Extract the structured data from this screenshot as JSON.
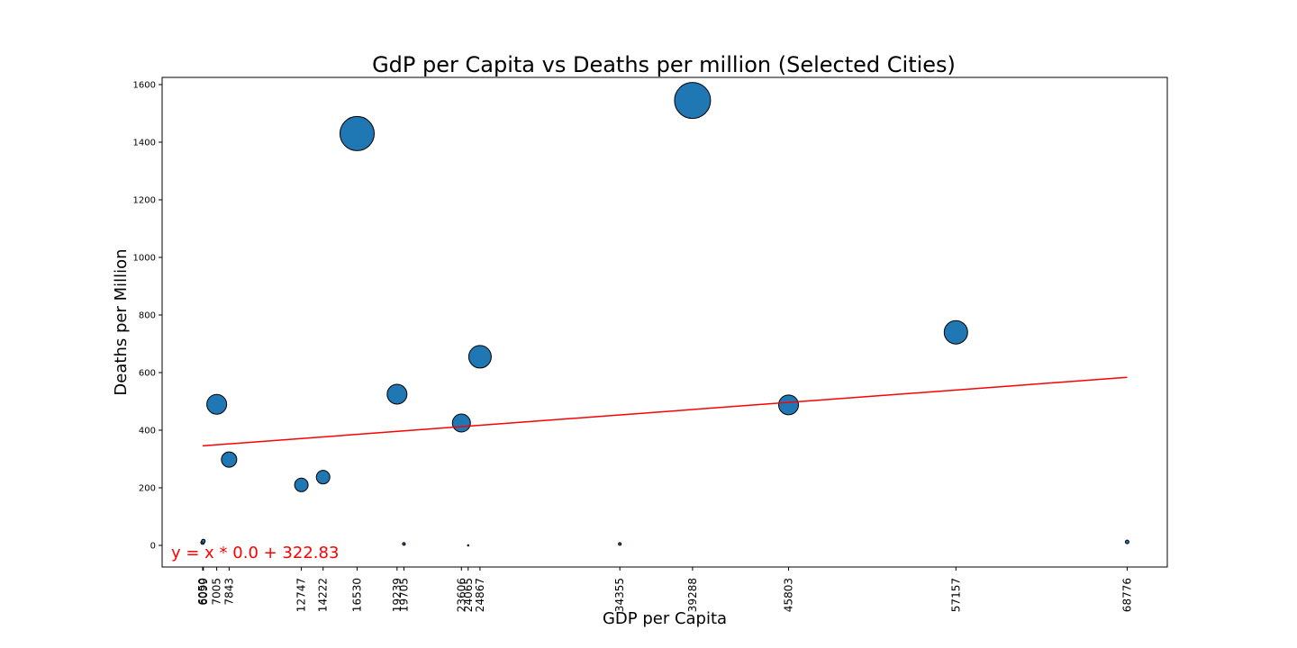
{
  "chart_data": {
    "type": "scatter",
    "title": "GdP per Capita vs Deaths per million (Selected Cities)",
    "xlabel": "GDP per Capita",
    "ylabel": "Deaths per Million",
    "ylim": [
      -75,
      1625
    ],
    "xlim": [
      3300,
      71500
    ],
    "yticks": [
      0,
      200,
      400,
      600,
      800,
      1000,
      1200,
      1400,
      1600
    ],
    "xticks": [
      6050,
      6099,
      7005,
      7843,
      12747,
      14222,
      16530,
      19239,
      19705,
      23606,
      24065,
      24867,
      34355,
      39288,
      45803,
      57157,
      68776
    ],
    "xtick_labels": [
      "6050",
      "6099",
      "7005",
      "7843",
      "12747",
      "14222",
      "16530",
      "19239",
      "19705",
      "23606",
      "24065",
      "24867",
      "34355",
      "39288",
      "45803",
      "57157",
      "68776"
    ],
    "grid": false,
    "points": [
      {
        "x": 6050,
        "y": 10,
        "size": 4
      },
      {
        "x": 6099,
        "y": 15,
        "size": 4
      },
      {
        "x": 7005,
        "y": 490,
        "size": 22
      },
      {
        "x": 7843,
        "y": 298,
        "size": 17
      },
      {
        "x": 12747,
        "y": 210,
        "size": 15
      },
      {
        "x": 14222,
        "y": 237,
        "size": 15
      },
      {
        "x": 16530,
        "y": 1430,
        "size": 38
      },
      {
        "x": 19239,
        "y": 525,
        "size": 22
      },
      {
        "x": 19705,
        "y": 5,
        "size": 3
      },
      {
        "x": 23606,
        "y": 425,
        "size": 20
      },
      {
        "x": 24065,
        "y": 0,
        "size": 1.5
      },
      {
        "x": 24867,
        "y": 655,
        "size": 25
      },
      {
        "x": 34355,
        "y": 5,
        "size": 3
      },
      {
        "x": 39288,
        "y": 1545,
        "size": 40
      },
      {
        "x": 45803,
        "y": 488,
        "size": 22
      },
      {
        "x": 57157,
        "y": 740,
        "size": 26
      },
      {
        "x": 68776,
        "y": 12,
        "size": 4
      }
    ],
    "regression": {
      "x_start": 6050,
      "x_end": 68776,
      "slope": 0.0037919,
      "intercept": 322.83
    },
    "annotation": "y = x * 0.0 + 322.83",
    "colors": {
      "point_fill": "#1f77b4",
      "point_edge": "#000000",
      "line": "#ff0000",
      "annotation": "#ff0000"
    }
  }
}
